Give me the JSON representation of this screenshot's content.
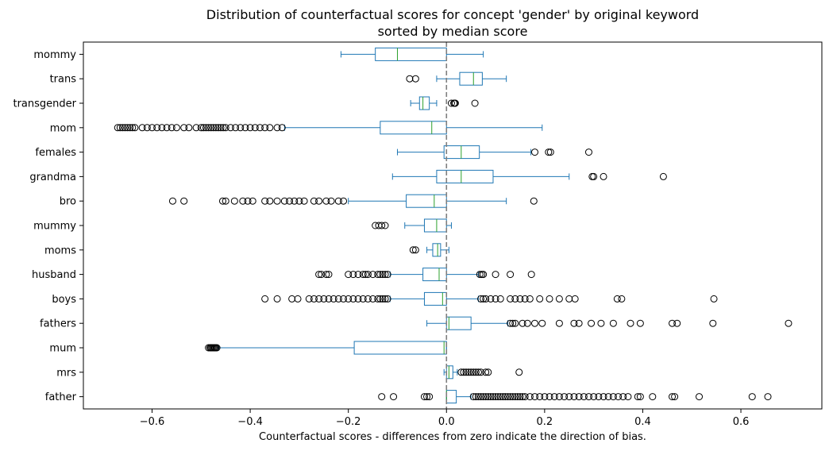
{
  "chart_data": {
    "type": "boxplot",
    "title": "Distribution of counterfactual scores for concept 'gender' by original keyword",
    "subtitle": "sorted by median score",
    "xlabel": "Counterfactual scores - differences from zero indicate the direction of bias.",
    "ylabel": "",
    "xlim": [
      -0.74,
      0.765
    ],
    "xticks": [
      -0.6,
      -0.4,
      -0.2,
      0.0,
      0.2,
      0.4,
      0.6
    ],
    "xtick_labels": [
      "−0.6",
      "−0.4",
      "−0.2",
      "0.0",
      "0.2",
      "0.4",
      "0.6"
    ],
    "orientation": "horizontal",
    "reference_line": {
      "x": 0.0,
      "style": "dashed",
      "color": "#7f7f7f"
    },
    "colors": {
      "box": "#1f77b4",
      "median": "#2ca02c",
      "outlier": "#000000"
    },
    "grid": false,
    "categories": [
      {
        "name": "mommy",
        "whislo": -0.215,
        "q1": -0.145,
        "med": -0.1,
        "q3": 0.0,
        "whishi": 0.075,
        "fliers": []
      },
      {
        "name": "trans",
        "whislo": -0.02,
        "q1": 0.027,
        "med": 0.055,
        "q3": 0.073,
        "whishi": 0.122,
        "fliers": [
          -0.075,
          -0.063
        ]
      },
      {
        "name": "transgender",
        "whislo": -0.073,
        "q1": -0.055,
        "med": -0.048,
        "q3": -0.035,
        "whishi": -0.02,
        "fliers": [
          0.01,
          0.015,
          0.017,
          0.018,
          0.058
        ]
      },
      {
        "name": "mom",
        "whislo": -0.33,
        "q1": -0.135,
        "med": -0.03,
        "q3": 0.0,
        "whishi": 0.195,
        "fliers": [
          -0.67,
          -0.665,
          -0.66,
          -0.655,
          -0.65,
          -0.645,
          -0.64,
          -0.635,
          -0.62,
          -0.61,
          -0.6,
          -0.59,
          -0.58,
          -0.57,
          -0.56,
          -0.55,
          -0.535,
          -0.525,
          -0.51,
          -0.5,
          -0.495,
          -0.49,
          -0.485,
          -0.48,
          -0.475,
          -0.47,
          -0.465,
          -0.46,
          -0.455,
          -0.45,
          -0.44,
          -0.43,
          -0.42,
          -0.41,
          -0.4,
          -0.39,
          -0.38,
          -0.37,
          -0.36,
          -0.345,
          -0.335
        ]
      },
      {
        "name": "females",
        "whislo": -0.1,
        "q1": -0.005,
        "med": 0.03,
        "q3": 0.067,
        "whishi": 0.172,
        "fliers": [
          0.18,
          0.208,
          0.212,
          0.29
        ]
      },
      {
        "name": "grandma",
        "whislo": -0.11,
        "q1": -0.02,
        "med": 0.03,
        "q3": 0.095,
        "whishi": 0.25,
        "fliers": [
          0.297,
          0.3,
          0.32,
          0.442
        ]
      },
      {
        "name": "bro",
        "whislo": -0.2,
        "q1": -0.082,
        "med": -0.025,
        "q3": 0.0,
        "whishi": 0.122,
        "fliers": [
          -0.558,
          -0.535,
          -0.456,
          -0.45,
          -0.432,
          -0.415,
          -0.405,
          -0.395,
          -0.37,
          -0.36,
          -0.345,
          -0.33,
          -0.32,
          -0.31,
          -0.3,
          -0.29,
          -0.27,
          -0.26,
          -0.245,
          -0.235,
          -0.22,
          -0.21,
          0.178
        ]
      },
      {
        "name": "mummy",
        "whislo": -0.085,
        "q1": -0.045,
        "med": -0.02,
        "q3": 0.0,
        "whishi": 0.01,
        "fliers": [
          -0.145,
          -0.138,
          -0.132,
          -0.125
        ]
      },
      {
        "name": "moms",
        "whislo": -0.04,
        "q1": -0.028,
        "med": -0.018,
        "q3": -0.012,
        "whishi": 0.005,
        "fliers": [
          -0.068,
          -0.063
        ]
      },
      {
        "name": "husband",
        "whislo": -0.115,
        "q1": -0.048,
        "med": -0.015,
        "q3": 0.0,
        "whishi": 0.065,
        "fliers": [
          -0.26,
          -0.255,
          -0.245,
          -0.24,
          -0.2,
          -0.19,
          -0.18,
          -0.17,
          -0.165,
          -0.16,
          -0.15,
          -0.14,
          -0.135,
          -0.13,
          -0.125,
          -0.12,
          0.068,
          0.072,
          0.075,
          0.1,
          0.13,
          0.173
        ]
      },
      {
        "name": "boys",
        "whislo": -0.115,
        "q1": -0.045,
        "med": -0.008,
        "q3": 0.0,
        "whishi": 0.065,
        "fliers": [
          -0.37,
          -0.345,
          -0.315,
          -0.303,
          -0.28,
          -0.27,
          -0.26,
          -0.25,
          -0.24,
          -0.23,
          -0.22,
          -0.21,
          -0.2,
          -0.19,
          -0.18,
          -0.17,
          -0.16,
          -0.15,
          -0.14,
          -0.135,
          -0.13,
          -0.125,
          -0.12,
          0.07,
          0.075,
          0.08,
          0.09,
          0.1,
          0.11,
          0.13,
          0.14,
          0.15,
          0.16,
          0.17,
          0.19,
          0.21,
          0.23,
          0.25,
          0.262,
          0.348,
          0.357,
          0.545
        ]
      },
      {
        "name": "fathers",
        "whislo": -0.04,
        "q1": 0.0,
        "med": 0.005,
        "q3": 0.05,
        "whishi": 0.125,
        "fliers": [
          0.13,
          0.135,
          0.14,
          0.155,
          0.165,
          0.18,
          0.195,
          0.23,
          0.26,
          0.27,
          0.295,
          0.315,
          0.34,
          0.375,
          0.395,
          0.46,
          0.47,
          0.543,
          0.697
        ]
      },
      {
        "name": "mum",
        "whislo": -0.465,
        "q1": -0.188,
        "med": -0.005,
        "q3": 0.0,
        "whishi": 0.0,
        "fliers": [
          -0.485,
          -0.482,
          -0.48,
          -0.478,
          -0.476,
          -0.474,
          -0.472,
          -0.47,
          -0.468
        ]
      },
      {
        "name": "mrs",
        "whislo": -0.005,
        "q1": 0.0,
        "med": 0.005,
        "q3": 0.013,
        "whishi": 0.022,
        "fliers": [
          0.03,
          0.035,
          0.04,
          0.045,
          0.05,
          0.055,
          0.06,
          0.065,
          0.07,
          0.08,
          0.085,
          0.148
        ]
      },
      {
        "name": "father",
        "whislo": 0.0,
        "q1": 0.0,
        "med": 0.0,
        "q3": 0.02,
        "whishi": 0.05,
        "fliers": [
          -0.132,
          -0.108,
          -0.045,
          -0.04,
          -0.035,
          0.055,
          0.06,
          0.065,
          0.07,
          0.075,
          0.08,
          0.085,
          0.09,
          0.095,
          0.1,
          0.105,
          0.11,
          0.115,
          0.12,
          0.125,
          0.13,
          0.135,
          0.14,
          0.145,
          0.15,
          0.155,
          0.16,
          0.17,
          0.18,
          0.19,
          0.2,
          0.21,
          0.22,
          0.23,
          0.24,
          0.25,
          0.26,
          0.27,
          0.28,
          0.29,
          0.3,
          0.31,
          0.32,
          0.33,
          0.34,
          0.35,
          0.36,
          0.37,
          0.39,
          0.395,
          0.42,
          0.46,
          0.465,
          0.515,
          0.623,
          0.655
        ]
      }
    ]
  }
}
